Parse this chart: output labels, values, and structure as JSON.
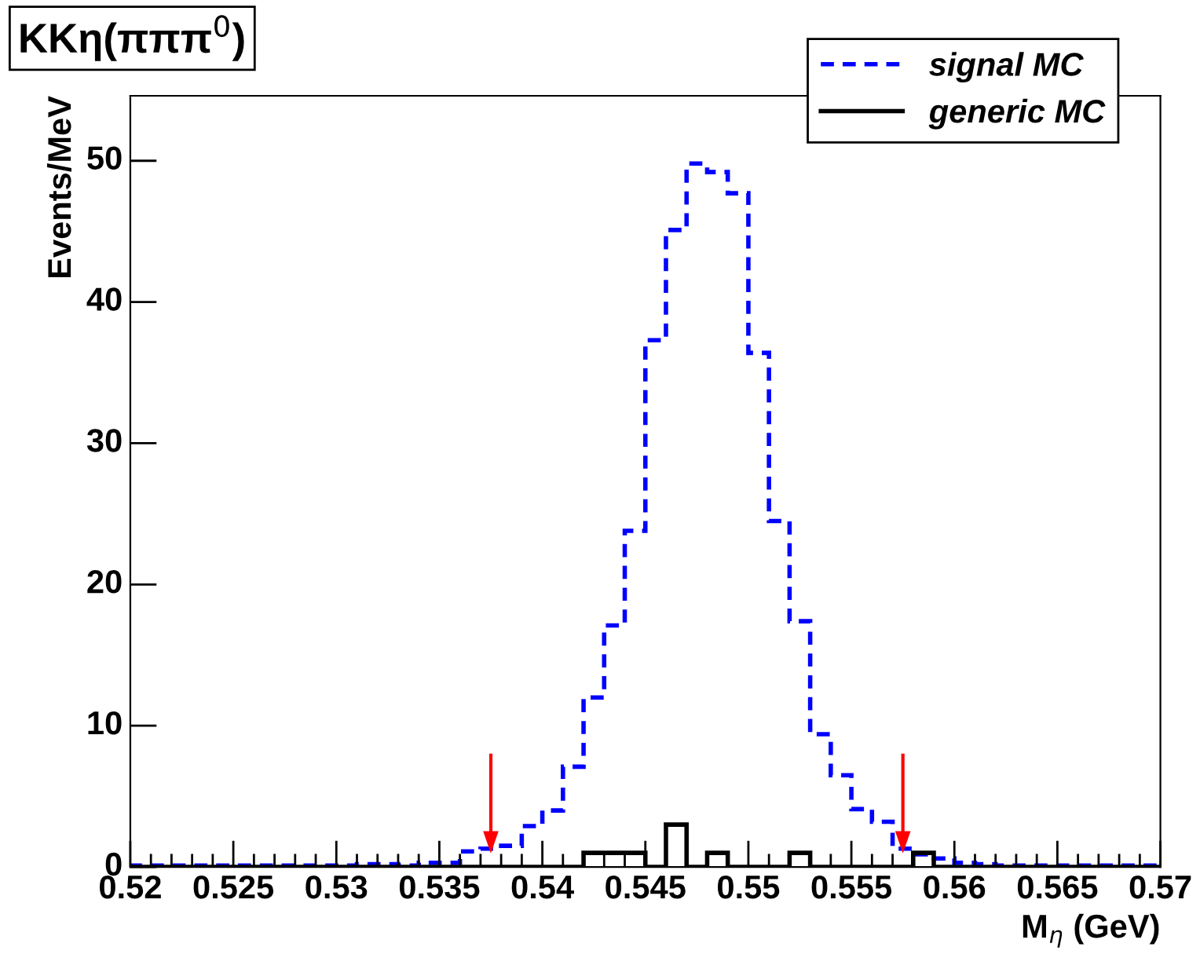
{
  "chart_data": {
    "type": "histogram",
    "title": "KKη(πππ$^{0}$)",
    "xlabel": "M$_{η}$ (GeV)",
    "ylabel": "Events/MeV",
    "bins": [
      0.52,
      0.521,
      0.522,
      0.523,
      0.524,
      0.525,
      0.526,
      0.527,
      0.528,
      0.529,
      0.53,
      0.531,
      0.532,
      0.533,
      0.534,
      0.535,
      0.536,
      0.537,
      0.538,
      0.539,
      0.54,
      0.541,
      0.542,
      0.543,
      0.544,
      0.545,
      0.546,
      0.547,
      0.548,
      0.549,
      0.55,
      0.551,
      0.552,
      0.553,
      0.554,
      0.555,
      0.556,
      0.557,
      0.558,
      0.559,
      0.56,
      0.561,
      0.562,
      0.563,
      0.564,
      0.565,
      0.566,
      0.567,
      0.568,
      0.569,
      0.57
    ],
    "series": [
      {
        "name": "signal MC",
        "color": "#0000ff",
        "line_style": "dashed",
        "values": [
          0.1,
          0.1,
          0.1,
          0.1,
          0.1,
          0.1,
          0.1,
          0.1,
          0.1,
          0.1,
          0.1,
          0.2,
          0.2,
          0.1,
          0.3,
          0.3,
          1.1,
          1.3,
          1.5,
          2.9,
          4.0,
          7.1,
          12.0,
          17.1,
          23.8,
          37.3,
          45.1,
          49.8,
          49.2,
          47.7,
          36.4,
          24.5,
          17.4,
          9.4,
          6.5,
          4.1,
          3.2,
          1.3,
          0.9,
          0.6,
          0.3,
          0.2,
          0.1,
          0.1,
          0.1,
          0.1,
          0.1,
          0.1,
          0.1,
          0.1
        ]
      },
      {
        "name": "generic MC",
        "color": "#000000",
        "line_style": "solid",
        "values": [
          0,
          0,
          0,
          0,
          0,
          0,
          0,
          0,
          0,
          0,
          0,
          0,
          0,
          0,
          0,
          0,
          0,
          0,
          0,
          0,
          0,
          0,
          1,
          1,
          1,
          0,
          3,
          0,
          1,
          0,
          0,
          0,
          1,
          0,
          0,
          0,
          0,
          0,
          1,
          0,
          0,
          0,
          0,
          0,
          0,
          0,
          0,
          0,
          0,
          0
        ]
      }
    ],
    "xlim": [
      0.52,
      0.57
    ],
    "xticks": [
      0.52,
      0.525,
      0.53,
      0.535,
      0.54,
      0.545,
      0.55,
      0.555,
      0.56,
      0.565,
      0.57
    ],
    "ylim": [
      0,
      54.6
    ],
    "yticks": [
      0,
      10,
      20,
      30,
      40,
      50
    ],
    "ref_lines": [
      {
        "axis": "x",
        "value": 0.5375,
        "color": "#ff0000"
      },
      {
        "axis": "x",
        "value": 0.5575,
        "color": "#ff0000"
      }
    ],
    "legend": "top right",
    "grid": false
  }
}
